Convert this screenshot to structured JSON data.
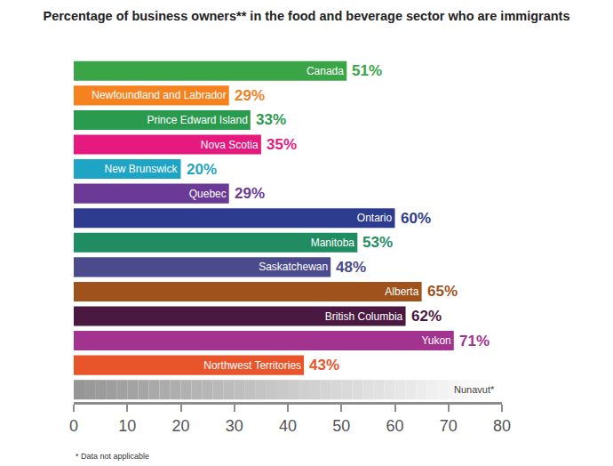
{
  "chart_data": {
    "type": "bar",
    "orientation": "horizontal",
    "title": "Percentage of business owners** in the food and beverage sector who are immigrants",
    "categories": [
      "Canada",
      "Newfoundland and Labrador",
      "Prince Edward Island",
      "Nova Scotia",
      "New Brunswick",
      "Quebec",
      "Ontario",
      "Manitoba",
      "Saskatchewan",
      "Alberta",
      "British Columbia",
      "Yukon",
      "Northwest Territories",
      "Nunavut*"
    ],
    "values": [
      51,
      29,
      33,
      35,
      20,
      29,
      60,
      53,
      48,
      65,
      62,
      71,
      43,
      null
    ],
    "value_labels": [
      "51%",
      "29%",
      "33%",
      "35%",
      "20%",
      "29%",
      "60%",
      "53%",
      "48%",
      "65%",
      "62%",
      "71%",
      "43%",
      null
    ],
    "colors": [
      "#3aa547",
      "#f5821f",
      "#2a9a4e",
      "#e6197e",
      "#1ea4c4",
      "#6b3a96",
      "#2e3c8f",
      "#1f8c62",
      "#4b4a8c",
      "#a0521c",
      "#4a1942",
      "#a2338f",
      "#e9552b",
      null
    ],
    "xlim": [
      0,
      80
    ],
    "xticks": [
      0,
      10,
      20,
      30,
      40,
      50,
      60,
      70,
      80
    ],
    "grid": false,
    "data_labels": true,
    "tick_labels": "x",
    "footnote": "* Data not applicable"
  }
}
